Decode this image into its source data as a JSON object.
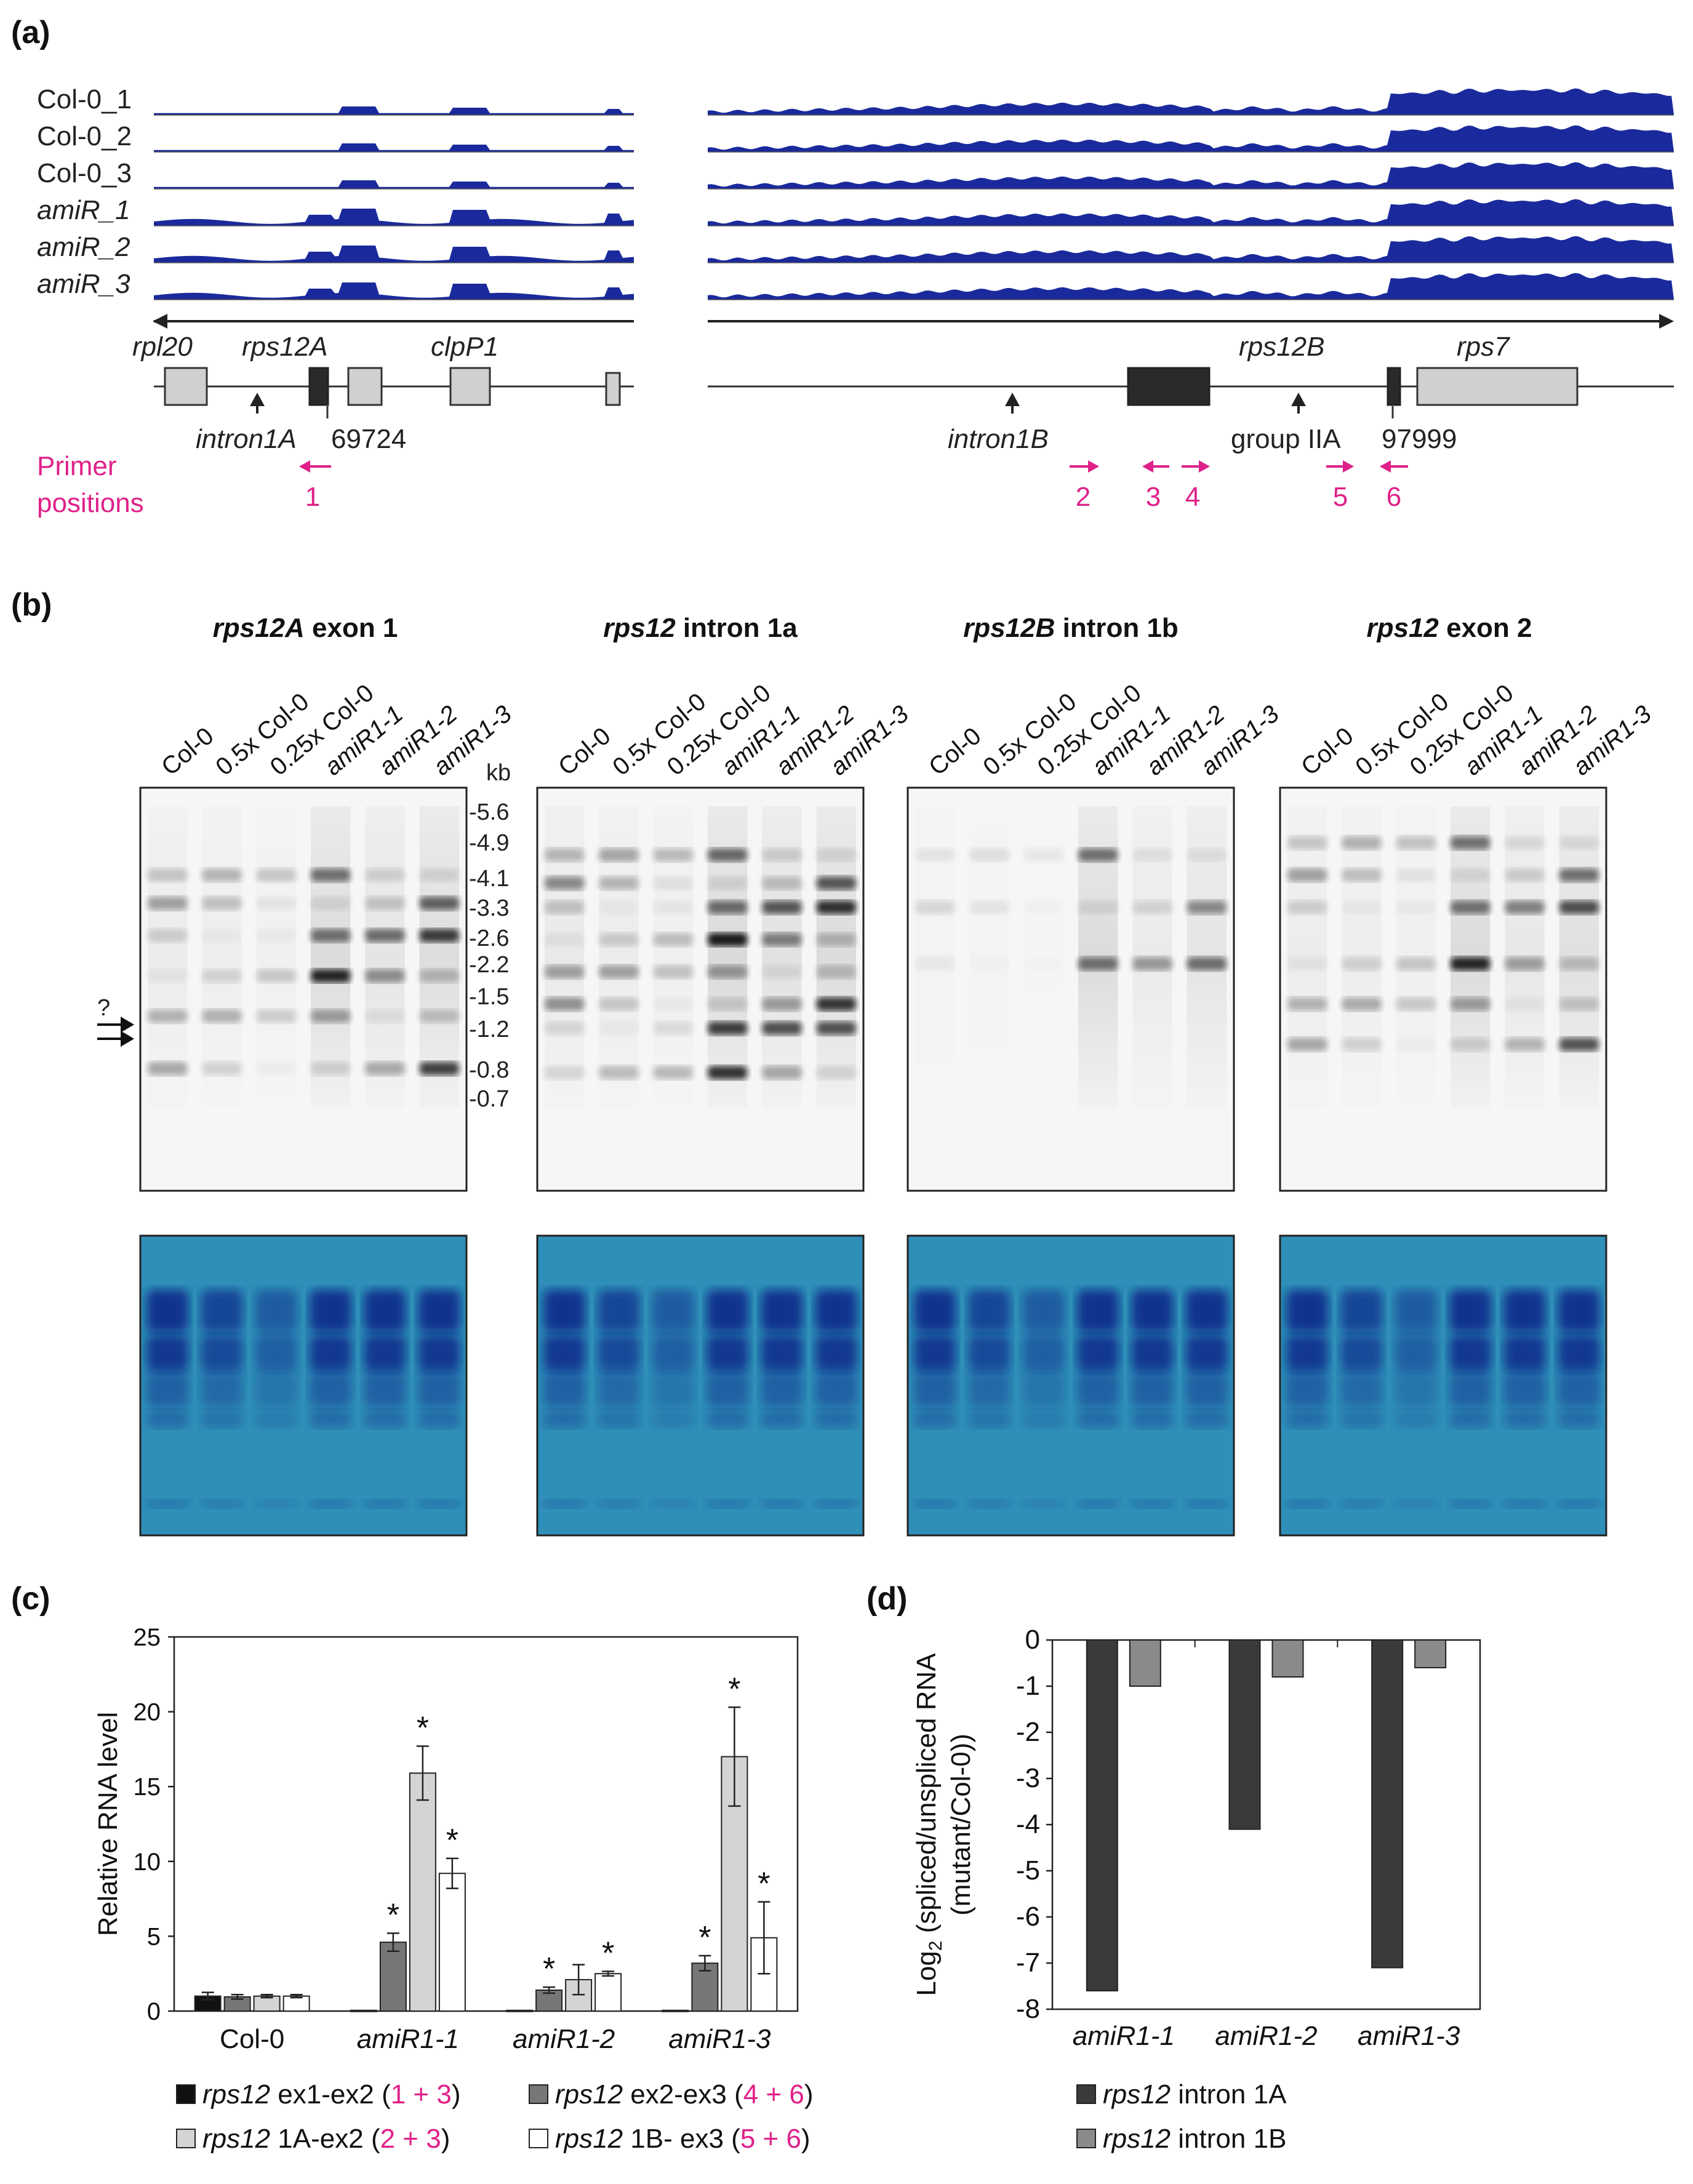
{
  "panel_labels": {
    "a": "(a)",
    "b": "(b)",
    "c": "(c)",
    "d": "(d)"
  },
  "panel_a": {
    "tracks": [
      "Col-0_1",
      "Col-0_2",
      "Col-0_3",
      "amiR_1",
      "amiR_2",
      "amiR_3"
    ],
    "genes": {
      "rpl20": "rpl20",
      "rps12A": "rps12A",
      "clpP1": "clpP1",
      "rps12B": "rps12B",
      "rps7": "rps7"
    },
    "features": {
      "intron1A": "intron1A",
      "intron1B": "intron1B",
      "groupIIA": "group IIA"
    },
    "coords": {
      "left": "69724",
      "right": "97999"
    },
    "primer_title_1": "Primer",
    "primer_title_2": "positions",
    "primers": [
      "1",
      "2",
      "3",
      "4",
      "5",
      "6"
    ],
    "colors": {
      "coverage": "#1a2a9c",
      "primer": "#e0218a",
      "exon_dark": "#2a2a2a",
      "exon_light": "#d0d0d0"
    }
  },
  "panel_b": {
    "blots": [
      {
        "title_italic": "rps12A",
        "title_rest": " exon 1"
      },
      {
        "title_italic": "rps12",
        "title_rest": " intron 1a"
      },
      {
        "title_italic": "rps12B",
        "title_rest": " intron 1b"
      },
      {
        "title_italic": "rps12",
        "title_rest": " exon 2"
      }
    ],
    "lanes": [
      {
        "label": "Col-0",
        "italic": false
      },
      {
        "label": "0.5x Col-0",
        "italic": false
      },
      {
        "label": "0.25x Col-0",
        "italic": false
      },
      {
        "label": "amiR1-1",
        "italic": true
      },
      {
        "label": "amiR1-2",
        "italic": true
      },
      {
        "label": "amiR1-3",
        "italic": true
      }
    ],
    "kb_label": "kb",
    "markers": [
      "-5.6",
      "-4.9",
      "-4.1",
      "-3.3",
      "-2.6",
      "-2.2",
      "-1.5",
      "-1.2",
      "-0.8",
      "-0.7"
    ],
    "question_mark": "?"
  },
  "chart_data": [
    {
      "type": "bar",
      "panel": "(c)",
      "title": "",
      "xlabel": "",
      "ylabel": "Relative RNA level",
      "ylim": [
        0,
        25
      ],
      "yticks": [
        0,
        5,
        10,
        15,
        20,
        25
      ],
      "categories": [
        "Col-0",
        "amiR1-1",
        "amiR1-2",
        "amiR1-3"
      ],
      "series": [
        {
          "name": "rps12 ex1-ex2 (1 + 3)",
          "gene": "rps12",
          "label": " ex1-ex2 (",
          "pa": "1 + 3",
          "end": ")",
          "color": "#111111",
          "values": [
            1.0,
            0.05,
            0.05,
            0.05
          ],
          "errors": [
            0.25,
            0,
            0,
            0
          ],
          "sig": [
            false,
            false,
            false,
            false
          ]
        },
        {
          "name": "rps12 ex2-ex3 (4 + 6)",
          "gene": "rps12",
          "label": " ex2-ex3 (",
          "pa": "4 + 6",
          "end": ")",
          "color": "#777777",
          "values": [
            0.95,
            4.6,
            1.4,
            3.2
          ],
          "errors": [
            0.15,
            0.6,
            0.2,
            0.5
          ],
          "sig": [
            false,
            true,
            true,
            true
          ]
        },
        {
          "name": "rps12 1A-ex2 (2 + 3)",
          "gene": "rps12",
          "label": " 1A-ex2 (",
          "pa": "2 + 3",
          "end": ")",
          "color": "#d4d4d4",
          "values": [
            1.0,
            15.9,
            2.1,
            17.0
          ],
          "errors": [
            0.1,
            1.8,
            1.0,
            3.3
          ],
          "sig": [
            false,
            true,
            false,
            true
          ]
        },
        {
          "name": "rps12 1B- ex3 (5 + 6)",
          "gene": "rps12",
          "label": " 1B- ex3 (",
          "pa": "5 + 6",
          "end": ")",
          "color": "#ffffff",
          "values": [
            1.0,
            9.2,
            2.5,
            4.9
          ],
          "errors": [
            0.1,
            1.0,
            0.15,
            2.4
          ],
          "sig": [
            false,
            true,
            true,
            true
          ]
        }
      ],
      "significance_marker": "*"
    },
    {
      "type": "bar",
      "panel": "(d)",
      "title": "",
      "ylabel_line1": "Log",
      "ylabel_sub": "2",
      "ylabel_line1_rest": " (spliced/unspliced RNA",
      "ylabel_line2": "(mutant/Col-0))",
      "ylim": [
        -8,
        0
      ],
      "yticks": [
        0,
        -1,
        -2,
        -3,
        -4,
        -5,
        -6,
        -7,
        -8
      ],
      "categories": [
        "amiR1-1",
        "amiR1-2",
        "amiR1-3"
      ],
      "series": [
        {
          "name": "rps12 intron 1A",
          "gene": "rps12",
          "label": " intron 1A",
          "color": "#3a3a3a",
          "values": [
            -7.6,
            -4.1,
            -7.1
          ]
        },
        {
          "name": "rps12 intron 1B",
          "gene": "rps12",
          "label": " intron 1B",
          "color": "#8a8a8a",
          "values": [
            -1.0,
            -0.8,
            -0.6
          ]
        }
      ]
    }
  ]
}
